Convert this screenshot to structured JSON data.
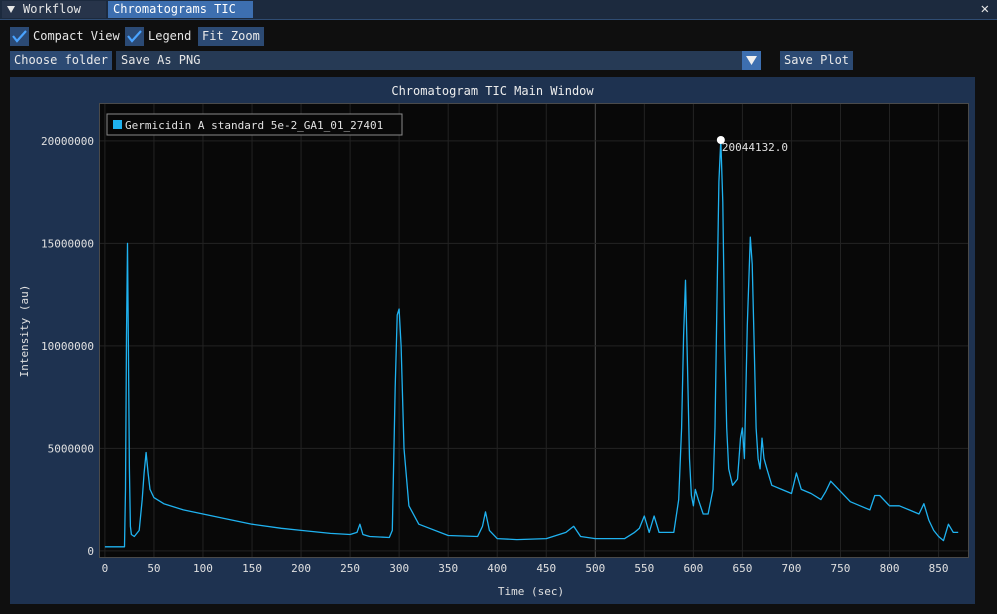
{
  "tabs": [
    {
      "label": "Workflow",
      "active": false
    },
    {
      "label": "Chromatograms TIC",
      "active": true
    }
  ],
  "close_label": "✕",
  "controls": {
    "compact_view": {
      "label": "Compact View",
      "checked": true
    },
    "legend": {
      "label": "Legend",
      "checked": true
    },
    "fit_zoom_label": "Fit Zoom",
    "choose_folder_label": "Choose folder",
    "save_format": "Save As PNG",
    "save_plot_label": "Save Plot"
  },
  "colors": {
    "accent": "#3d6fb0",
    "series": "#1fb2f0",
    "plot_background": "#080808",
    "frame": "#1e3250"
  },
  "chart_data": {
    "type": "line",
    "title": "Chromatogram TIC Main Window",
    "xlabel": "Time (sec)",
    "ylabel": "Intensity (au)",
    "xlim": [
      -5,
      880
    ],
    "ylim": [
      -300000,
      21800000
    ],
    "xticks": [
      0,
      50,
      100,
      150,
      200,
      250,
      300,
      350,
      400,
      450,
      500,
      550,
      600,
      650,
      700,
      750,
      800,
      850
    ],
    "yticks": [
      0,
      5000000,
      10000000,
      15000000,
      20000000
    ],
    "grid": true,
    "legend_position": "top-left",
    "annotation": {
      "x": 628,
      "y": 20044132.0,
      "label": "20044132.0"
    },
    "series": [
      {
        "name": "Germicidin A standard 5e-2_GA1_01_27401",
        "x": [
          0,
          20,
          21,
          22,
          23,
          24,
          25,
          26,
          27,
          30,
          35,
          38,
          40,
          42,
          44,
          46,
          50,
          60,
          80,
          100,
          120,
          150,
          180,
          200,
          230,
          250,
          257,
          260,
          263,
          270,
          290,
          293,
          296,
          298,
          300,
          302,
          305,
          310,
          320,
          350,
          380,
          385,
          388,
          392,
          400,
          420,
          450,
          470,
          478,
          485,
          500,
          530,
          540,
          545,
          550,
          555,
          560,
          565,
          580,
          585,
          588,
          590,
          592,
          594,
          596,
          598,
          600,
          602,
          605,
          610,
          615,
          620,
          622,
          624,
          626,
          628,
          630,
          632,
          634,
          636,
          640,
          645,
          648,
          650,
          652,
          655,
          658,
          660,
          662,
          664,
          666,
          668,
          670,
          672,
          675,
          680,
          690,
          700,
          705,
          710,
          720,
          730,
          735,
          740,
          760,
          770,
          780,
          785,
          790,
          800,
          810,
          820,
          830,
          835,
          840,
          845,
          850,
          855,
          860,
          865,
          870
        ],
        "y": [
          200000,
          200000,
          3000000,
          10500000,
          15000000,
          10000000,
          4000000,
          1200000,
          800000,
          700000,
          1000000,
          2500000,
          3800000,
          4800000,
          3800000,
          3000000,
          2600000,
          2300000,
          2000000,
          1800000,
          1600000,
          1300000,
          1100000,
          1000000,
          850000,
          800000,
          900000,
          1300000,
          800000,
          700000,
          650000,
          1000000,
          8000000,
          11500000,
          11800000,
          10000000,
          5000000,
          2200000,
          1300000,
          750000,
          700000,
          1200000,
          1900000,
          1000000,
          600000,
          550000,
          600000,
          900000,
          1200000,
          700000,
          600000,
          600000,
          900000,
          1100000,
          1700000,
          900000,
          1700000,
          900000,
          900000,
          2500000,
          6000000,
          10500000,
          13200000,
          9000000,
          4500000,
          2700000,
          2200000,
          3000000,
          2500000,
          1800000,
          1800000,
          3000000,
          6000000,
          12000000,
          18000000,
          20044132,
          17000000,
          10000000,
          6000000,
          4000000,
          3200000,
          3500000,
          5500000,
          6000000,
          4500000,
          11000000,
          15300000,
          14000000,
          10000000,
          6000000,
          4500000,
          4000000,
          5500000,
          4500000,
          4000000,
          3200000,
          3000000,
          2800000,
          3800000,
          3000000,
          2800000,
          2500000,
          2900000,
          3400000,
          2400000,
          2200000,
          2000000,
          2700000,
          2700000,
          2200000,
          2200000,
          2000000,
          1800000,
          2300000,
          1500000,
          1000000,
          700000,
          500000,
          1300000,
          900000,
          900000
        ]
      }
    ]
  }
}
